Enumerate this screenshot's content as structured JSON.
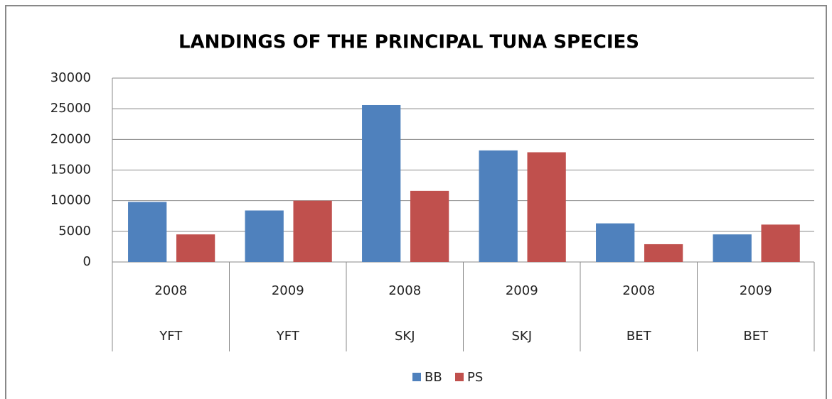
{
  "chart_data": {
    "type": "bar",
    "title": "LANDINGS OF THE PRINCIPAL TUNA SPECIES",
    "categories": [
      "2008",
      "2009",
      "2008",
      "2009",
      "2008",
      "2009"
    ],
    "category_groups": [
      "YFT",
      "YFT",
      "SKJ",
      "SKJ",
      "BET",
      "BET"
    ],
    "series": [
      {
        "name": "BB",
        "color": "#4f81bd",
        "values": [
          9800,
          8400,
          25600,
          18200,
          6300,
          4500
        ]
      },
      {
        "name": "PS",
        "color": "#c0504d",
        "values": [
          4500,
          10000,
          11600,
          17900,
          2900,
          6100
        ]
      }
    ],
    "ylim": [
      0,
      30000
    ],
    "yticks": [
      0,
      5000,
      10000,
      15000,
      20000,
      25000,
      30000
    ],
    "grid": true,
    "legend": "bottom"
  }
}
